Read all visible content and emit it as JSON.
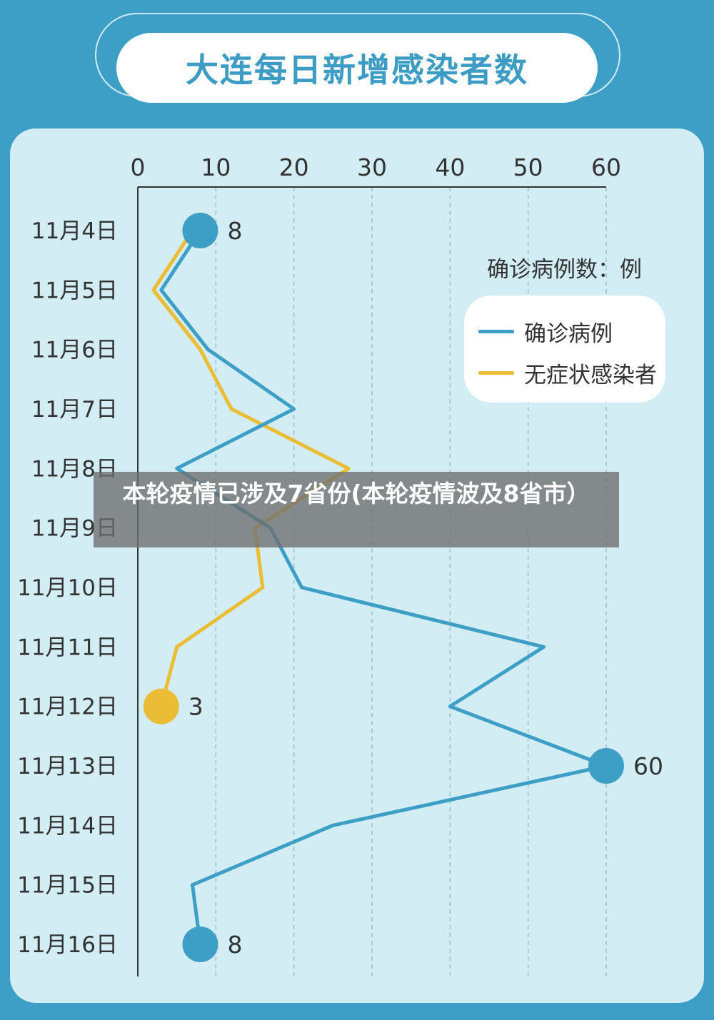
{
  "title": "大连每日新增感染者数",
  "unit_note": "确诊病例数：例",
  "legend": [
    {
      "label": "确诊病例",
      "color": "#3d9fc6"
    },
    {
      "label": "无症状感染者",
      "color": "#ebbd36"
    }
  ],
  "overlay_caption": "本轮疫情已涉及7省份(本轮疫情波及8省市）",
  "colors": {
    "background": "#3d9fc6",
    "panel": "#d2edf4",
    "confirmed": "#3d9fc6",
    "asymptomatic": "#ebbd36"
  },
  "chart_data": {
    "type": "line",
    "orientation": "horizontal-values",
    "title": "大连每日新增感染者数",
    "xlim": [
      0,
      60
    ],
    "x_ticks": [
      0,
      10,
      20,
      30,
      40,
      50,
      60
    ],
    "grid": true,
    "legend_position": "top-right",
    "categories": [
      "11月4日",
      "11月5日",
      "11月6日",
      "11月7日",
      "11月8日",
      "11月9日",
      "11月10日",
      "11月11日",
      "11月12日",
      "11月13日",
      "11月14日",
      "11月15日",
      "11月16日"
    ],
    "series": [
      {
        "name": "确诊病例",
        "color": "#3d9fc6",
        "values": [
          8,
          3,
          9,
          20,
          5,
          17,
          21,
          52,
          40,
          60,
          25,
          7,
          8
        ],
        "labeled_points": [
          {
            "index": 0,
            "label": "8"
          },
          {
            "index": 9,
            "label": "60"
          },
          {
            "index": 12,
            "label": "8"
          }
        ]
      },
      {
        "name": "无症状感染者",
        "color": "#ebbd36",
        "values": [
          7,
          2,
          8,
          12,
          27,
          15,
          16,
          5,
          3,
          null,
          null,
          null,
          null
        ],
        "labeled_points": [
          {
            "index": 8,
            "label": "3"
          }
        ]
      }
    ]
  }
}
